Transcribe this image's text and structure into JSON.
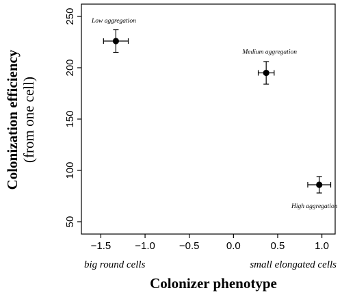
{
  "chart_data": {
    "type": "scatter",
    "title": "",
    "xlabel": "Colonizer phenotype",
    "xlabel_left_note": "big round cells",
    "xlabel_right_note": "small elongated cells",
    "ylabel": "Colonization efficiency",
    "ylabel_sub": "(from one cell)",
    "xlim": [
      -1.72,
      1.15
    ],
    "ylim": [
      38,
      262
    ],
    "x_ticks": [
      -1.5,
      -1.0,
      -0.5,
      0.0,
      0.5,
      1.0
    ],
    "x_tick_labels": [
      "−1.5",
      "−1.0",
      "−0.5",
      "0.0",
      "0.5",
      "1.0"
    ],
    "y_ticks": [
      50,
      100,
      150,
      200,
      250
    ],
    "y_tick_labels": [
      "50",
      "100",
      "150",
      "200",
      "250"
    ],
    "grid": false,
    "points": [
      {
        "label": "Low aggregation",
        "x": -1.33,
        "y": 226,
        "x_err": 0.14,
        "y_err": 11
      },
      {
        "label": "Medium aggregation",
        "x": 0.37,
        "y": 195,
        "x_err": 0.09,
        "y_err": 11
      },
      {
        "label": "High aggregation",
        "x": 0.97,
        "y": 86,
        "x_err": 0.13,
        "y_err": 8
      }
    ]
  }
}
